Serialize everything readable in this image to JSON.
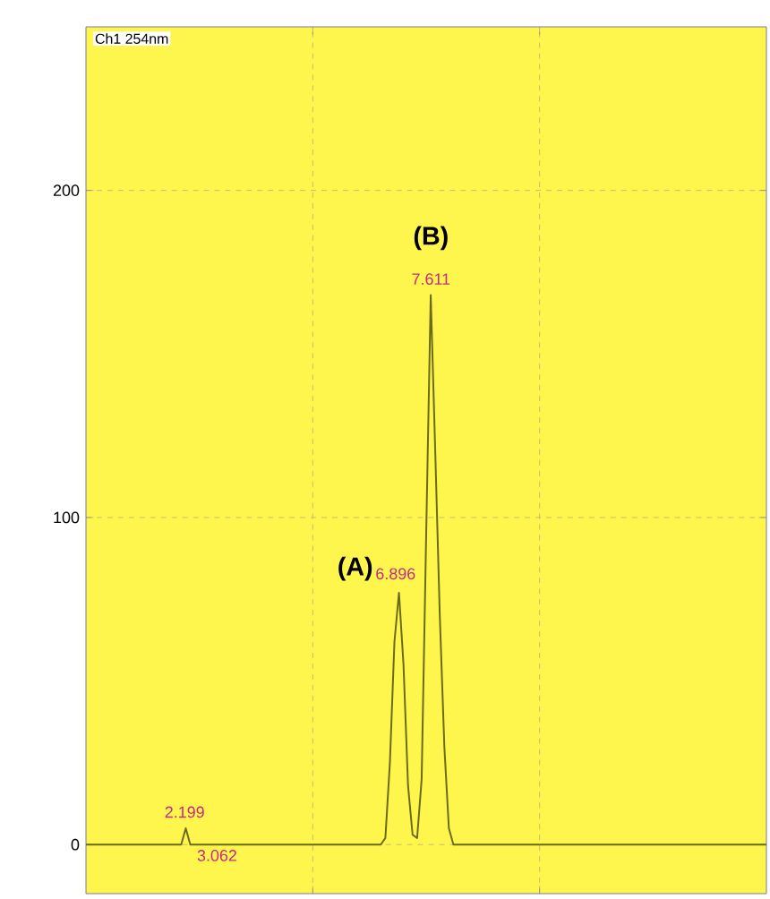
{
  "chart_data": {
    "type": "line",
    "categories": [
      null,
      null,
      null,
      null,
      null,
      null,
      null,
      null,
      null,
      null,
      null,
      null,
      null,
      null,
      null,
      null,
      null,
      null,
      null,
      null,
      null,
      null,
      null,
      null,
      null,
      null,
      null,
      null,
      null,
      null,
      null,
      null,
      null,
      null,
      null,
      null,
      null,
      null,
      null,
      null,
      null,
      null,
      null,
      null,
      null,
      null,
      null,
      null,
      null,
      null,
      null,
      null,
      null,
      null,
      null,
      null,
      null,
      null,
      null,
      null,
      null,
      null,
      null,
      null,
      null,
      null,
      null,
      null,
      null,
      null,
      null,
      null,
      null,
      null,
      null,
      null,
      null,
      null,
      null,
      null,
      null,
      null,
      null,
      null,
      null,
      null,
      null,
      null,
      null,
      null,
      null,
      null,
      null,
      null,
      null,
      null,
      null,
      null,
      null,
      null,
      null,
      null,
      null,
      null,
      null,
      null,
      null,
      null,
      null,
      null,
      null,
      null,
      null,
      null,
      null,
      null,
      null,
      null,
      null,
      null,
      null,
      null,
      null,
      null,
      null,
      null,
      null,
      null,
      null,
      null,
      null,
      null,
      null,
      null,
      null,
      null,
      null,
      null,
      null,
      null,
      null,
      null,
      null,
      null,
      null,
      null,
      null,
      null,
      null,
      null,
      null
    ],
    "series": [
      {
        "color": "#6b6b1e",
        "values": [
          0,
          0,
          0,
          0,
          0,
          0,
          0,
          0,
          0,
          0,
          0,
          0,
          0,
          0,
          0,
          0,
          0,
          0,
          0,
          0,
          0,
          0,
          5,
          0,
          0,
          0,
          0,
          0,
          0,
          0,
          0,
          0,
          0,
          0,
          0,
          0,
          0,
          0,
          0,
          0,
          0,
          0,
          0,
          0,
          0,
          0,
          0,
          0,
          0,
          0,
          0,
          0,
          0,
          0,
          0,
          0,
          0,
          0,
          0,
          0,
          0,
          0,
          0,
          0,
          0,
          0,
          2,
          25,
          62,
          77,
          55,
          18,
          3,
          2,
          20,
          95,
          168,
          120,
          70,
          30,
          5,
          0,
          0,
          0,
          0,
          0,
          0,
          0,
          0,
          0,
          0,
          0,
          0,
          0,
          0,
          0,
          0,
          0,
          0,
          0,
          0,
          0,
          0,
          0,
          0,
          0,
          0,
          0,
          0,
          0,
          0,
          0,
          0,
          0,
          0,
          0,
          0,
          0,
          0,
          0,
          0,
          0,
          0,
          0,
          0,
          0,
          0,
          0,
          0,
          0,
          0,
          0,
          0,
          0,
          0,
          0,
          0,
          0,
          0,
          0,
          0,
          0,
          0,
          0,
          0,
          0,
          0,
          0,
          0,
          0,
          0
        ]
      }
    ],
    "ylim": [
      -15,
      250
    ],
    "yticks": [
      0,
      100,
      200
    ],
    "grid": true,
    "marker": "none",
    "line_style": "solid",
    "annotations": [
      "Ch1 254nm",
      "(A)",
      "(B)",
      "2.199",
      "3.062",
      "6.896",
      "7.611"
    ]
  }
}
